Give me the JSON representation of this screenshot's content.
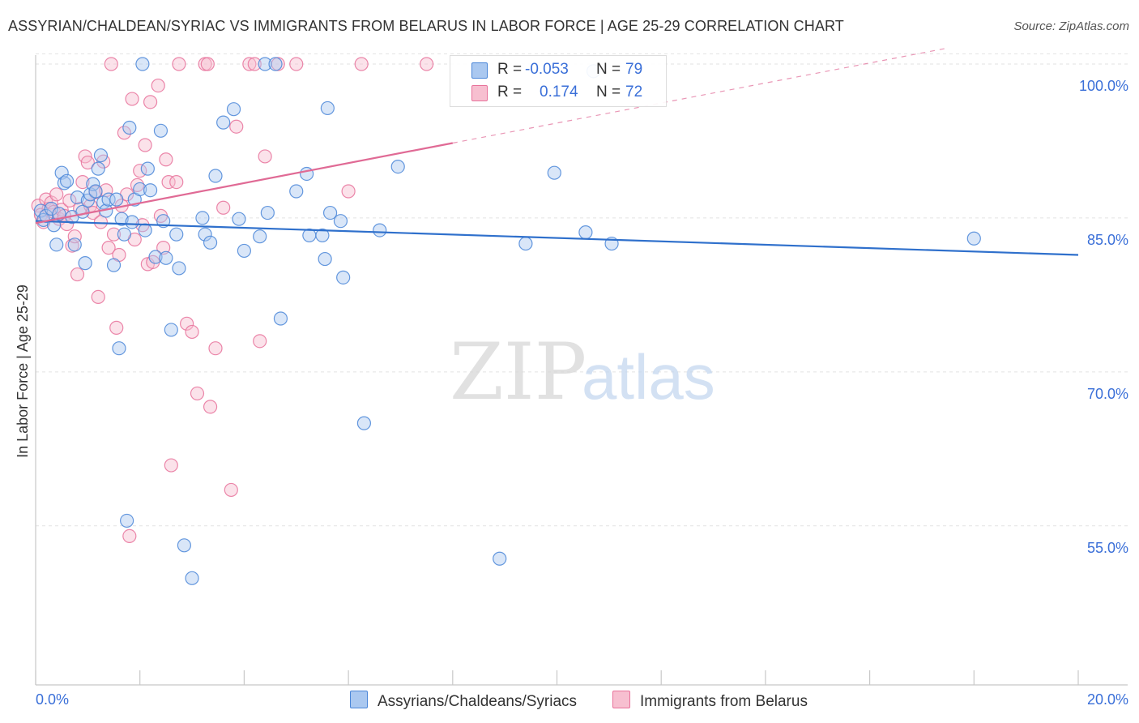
{
  "title": "ASSYRIAN/CHALDEAN/SYRIAC VS IMMIGRANTS FROM BELARUS IN LABOR FORCE | AGE 25-29 CORRELATION CHART",
  "source": "Source: ZipAtlas.com",
  "watermark": {
    "zip": "ZIP",
    "atlas": "atlas"
  },
  "stats": [
    {
      "r_label": "R =",
      "r_value": "-0.053",
      "n_label": "N =",
      "n_value": "79"
    },
    {
      "r_label": "R =",
      "r_value": "0.174",
      "n_label": "N =",
      "n_value": "72"
    }
  ],
  "colors": {
    "blue_fill": "#aac8f0",
    "blue_stroke": "#4a86d8",
    "blue_line": "#2f70cc",
    "pink_fill": "#f7bfd0",
    "pink_stroke": "#e8729b",
    "pink_line": "#e06a95",
    "axis_text": "#3a6fd8",
    "grid": "#e2e2e2"
  },
  "chart_data": {
    "type": "scatter",
    "title": "ASSYRIAN/CHALDEAN/SYRIAC VS IMMIGRANTS FROM BELARUS IN LABOR FORCE | AGE 25-29 CORRELATION CHART",
    "xlabel": "",
    "ylabel": "In Labor Force | Age 25-29",
    "xlim": [
      0,
      20
    ],
    "ylim": [
      39.5,
      101.5
    ],
    "x_tick_labels": [
      "0.0%",
      "20.0%"
    ],
    "y_ticks": [
      55,
      70,
      85,
      100
    ],
    "y_tick_labels": [
      "55.0%",
      "70.0%",
      "85.0%",
      "100.0%"
    ],
    "grid": true,
    "legend_position": "bottom",
    "series": [
      {
        "name": "Assyrians/Chaldeans/Syriacs",
        "color": "blue",
        "R": -0.053,
        "N": 79,
        "trend": {
          "x": [
            0.0,
            20.0
          ],
          "y": [
            84.7,
            81.4
          ],
          "dashed_from": null
        },
        "points": [
          [
            0.1,
            85.7
          ],
          [
            0.15,
            84.8
          ],
          [
            0.2,
            85.2
          ],
          [
            0.3,
            85.9
          ],
          [
            0.35,
            84.3
          ],
          [
            0.4,
            82.4
          ],
          [
            0.45,
            85.4
          ],
          [
            0.5,
            89.4
          ],
          [
            0.55,
            88.4
          ],
          [
            0.6,
            88.6
          ],
          [
            0.7,
            85.1
          ],
          [
            0.75,
            82.4
          ],
          [
            0.8,
            87.0
          ],
          [
            0.9,
            85.6
          ],
          [
            0.95,
            80.6
          ],
          [
            1.0,
            86.7
          ],
          [
            1.05,
            87.3
          ],
          [
            1.1,
            88.3
          ],
          [
            1.15,
            87.6
          ],
          [
            1.2,
            89.8
          ],
          [
            1.25,
            91.1
          ],
          [
            1.3,
            86.5
          ],
          [
            1.35,
            85.7
          ],
          [
            1.4,
            86.8
          ],
          [
            1.5,
            80.4
          ],
          [
            1.55,
            86.8
          ],
          [
            1.6,
            72.3
          ],
          [
            1.65,
            84.9
          ],
          [
            1.7,
            83.4
          ],
          [
            1.75,
            55.5
          ],
          [
            1.8,
            93.8
          ],
          [
            1.85,
            84.6
          ],
          [
            1.9,
            86.8
          ],
          [
            2.0,
            87.8
          ],
          [
            2.05,
            100.0
          ],
          [
            2.1,
            83.8
          ],
          [
            2.15,
            89.8
          ],
          [
            2.2,
            87.7
          ],
          [
            2.3,
            81.2
          ],
          [
            2.4,
            93.5
          ],
          [
            2.45,
            84.7
          ],
          [
            2.5,
            81.1
          ],
          [
            2.6,
            74.1
          ],
          [
            2.7,
            83.4
          ],
          [
            2.75,
            80.1
          ],
          [
            2.85,
            53.1
          ],
          [
            3.0,
            49.9
          ],
          [
            3.2,
            85.0
          ],
          [
            3.25,
            83.4
          ],
          [
            3.35,
            82.6
          ],
          [
            3.45,
            89.1
          ],
          [
            3.6,
            94.3
          ],
          [
            3.8,
            95.6
          ],
          [
            3.9,
            84.9
          ],
          [
            4.0,
            81.8
          ],
          [
            4.3,
            83.2
          ],
          [
            4.4,
            100.0
          ],
          [
            4.45,
            85.5
          ],
          [
            4.6,
            100.0
          ],
          [
            4.7,
            75.2
          ],
          [
            5.0,
            87.6
          ],
          [
            5.2,
            89.3
          ],
          [
            5.25,
            83.3
          ],
          [
            5.5,
            83.3
          ],
          [
            5.55,
            81.0
          ],
          [
            5.6,
            95.7
          ],
          [
            5.65,
            85.5
          ],
          [
            5.85,
            84.7
          ],
          [
            5.9,
            79.2
          ],
          [
            6.3,
            65.0
          ],
          [
            6.6,
            83.8
          ],
          [
            6.95,
            90.0
          ],
          [
            8.9,
            51.8
          ],
          [
            9.4,
            82.5
          ],
          [
            9.95,
            89.4
          ],
          [
            10.55,
            83.6
          ],
          [
            10.7,
            99.3
          ],
          [
            11.05,
            82.5
          ],
          [
            18.0,
            83.0
          ]
        ]
      },
      {
        "name": "Immigrants from Belarus",
        "color": "pink",
        "R": 0.174,
        "N": 72,
        "trend": {
          "x": [
            0.0,
            20.0
          ],
          "y": [
            84.5,
            104.0
          ],
          "solid_until": 8.0
        },
        "points": [
          [
            0.05,
            86.2
          ],
          [
            0.1,
            85.3
          ],
          [
            0.15,
            84.6
          ],
          [
            0.2,
            86.8
          ],
          [
            0.25,
            85.9
          ],
          [
            0.3,
            86.5
          ],
          [
            0.35,
            85.6
          ],
          [
            0.4,
            87.3
          ],
          [
            0.45,
            84.9
          ],
          [
            0.5,
            85.8
          ],
          [
            0.55,
            85.2
          ],
          [
            0.6,
            84.4
          ],
          [
            0.65,
            86.7
          ],
          [
            0.7,
            82.3
          ],
          [
            0.75,
            83.2
          ],
          [
            0.8,
            79.5
          ],
          [
            0.85,
            85.9
          ],
          [
            0.9,
            88.5
          ],
          [
            0.95,
            91.0
          ],
          [
            1.0,
            90.4
          ],
          [
            1.05,
            86.2
          ],
          [
            1.1,
            85.5
          ],
          [
            1.15,
            87.5
          ],
          [
            1.2,
            77.3
          ],
          [
            1.25,
            84.6
          ],
          [
            1.3,
            90.5
          ],
          [
            1.35,
            87.7
          ],
          [
            1.4,
            82.1
          ],
          [
            1.45,
            100.0
          ],
          [
            1.5,
            83.4
          ],
          [
            1.55,
            74.3
          ],
          [
            1.6,
            81.4
          ],
          [
            1.65,
            86.2
          ],
          [
            1.7,
            93.3
          ],
          [
            1.75,
            87.3
          ],
          [
            1.8,
            54.0
          ],
          [
            1.85,
            96.6
          ],
          [
            1.9,
            82.9
          ],
          [
            1.95,
            88.2
          ],
          [
            2.0,
            89.6
          ],
          [
            2.05,
            84.3
          ],
          [
            2.1,
            92.1
          ],
          [
            2.15,
            80.5
          ],
          [
            2.2,
            96.3
          ],
          [
            2.25,
            80.7
          ],
          [
            2.35,
            97.9
          ],
          [
            2.4,
            85.2
          ],
          [
            2.45,
            82.1
          ],
          [
            2.5,
            90.7
          ],
          [
            2.55,
            88.5
          ],
          [
            2.6,
            60.9
          ],
          [
            2.7,
            88.5
          ],
          [
            2.75,
            100.0
          ],
          [
            2.9,
            74.7
          ],
          [
            3.0,
            73.9
          ],
          [
            3.1,
            67.9
          ],
          [
            3.25,
            100.0
          ],
          [
            3.3,
            100.0
          ],
          [
            3.35,
            66.6
          ],
          [
            3.45,
            72.3
          ],
          [
            3.6,
            86.0
          ],
          [
            3.75,
            58.5
          ],
          [
            3.85,
            93.9
          ],
          [
            4.1,
            100.0
          ],
          [
            4.2,
            100.0
          ],
          [
            4.3,
            73.0
          ],
          [
            4.4,
            91.0
          ],
          [
            4.65,
            100.0
          ],
          [
            5.0,
            100.0
          ],
          [
            6.0,
            87.6
          ],
          [
            6.25,
            100.0
          ],
          [
            7.5,
            100.0
          ]
        ]
      }
    ]
  },
  "legend": {
    "items": [
      "Assyrians/Chaldeans/Syriacs",
      "Immigrants from Belarus"
    ]
  }
}
